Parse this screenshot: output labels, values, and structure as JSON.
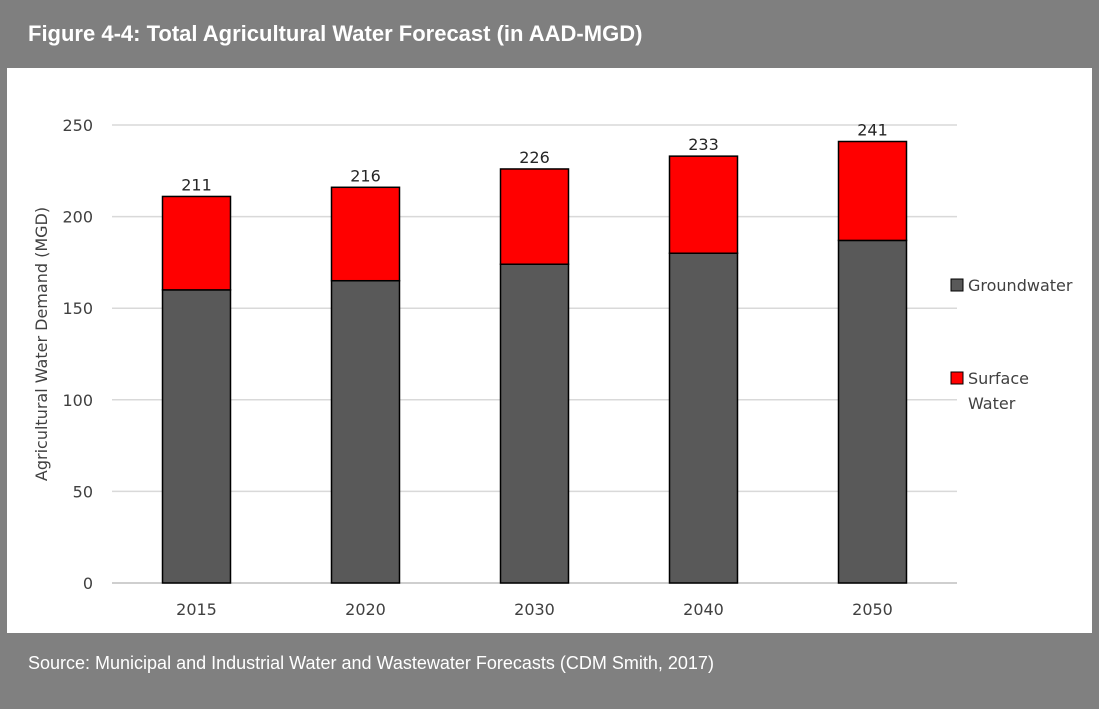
{
  "header": {
    "title": "Figure 4-4: Total Agricultural Water Forecast (in AAD-MGD)"
  },
  "footer": {
    "source": "Source: Municipal and Industrial Water and Wastewater Forecasts (CDM Smith, 2017)"
  },
  "chart_data": {
    "type": "bar",
    "stacked": true,
    "title": "Figure 4-4: Total Agricultural Water Forecast (in AAD-MGD)",
    "xlabel": "",
    "ylabel": "Agricultural Water Demand (MGD)",
    "ylim": [
      0,
      250
    ],
    "yticks": [
      0,
      50,
      100,
      150,
      200,
      250
    ],
    "grid": true,
    "legend_position": "right",
    "categories": [
      "2015",
      "2020",
      "2030",
      "2040",
      "2050"
    ],
    "series": [
      {
        "name": "Groundwater",
        "values": [
          160,
          165,
          174,
          180,
          187
        ],
        "color": "#595959"
      },
      {
        "name": "Surface Water",
        "legend_lines": [
          "Surface",
          "Water"
        ],
        "values": [
          51,
          51,
          52,
          53,
          54
        ],
        "color": "#ff0000"
      }
    ],
    "totals": [
      211,
      216,
      226,
      233,
      241
    ],
    "total_labels": [
      "211",
      "216",
      "226",
      "233",
      "241"
    ]
  }
}
